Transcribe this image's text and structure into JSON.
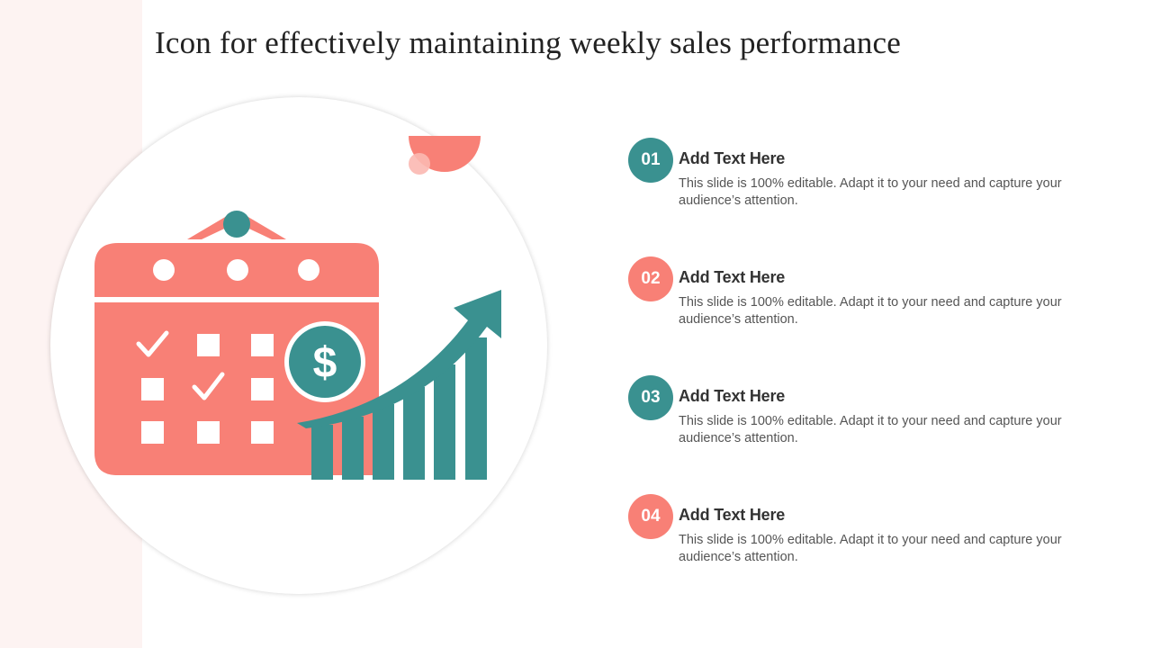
{
  "slide": {
    "title": "Icon for effectively maintaining weekly sales performance"
  },
  "colors": {
    "coral": "#f88076",
    "teal": "#3a9190",
    "band": "#fdf3f2"
  },
  "icons": [
    "calendar-icon",
    "dollar-icon",
    "growth-arrow-icon",
    "bar-chart-icon"
  ],
  "items": [
    {
      "number": "01",
      "heading": "Add Text Here",
      "text": "This slide is 100% editable. Adapt it to your need and capture your audience’s attention.",
      "color": "teal"
    },
    {
      "number": "02",
      "heading": "Add Text Here",
      "text": "This slide is 100% editable. Adapt it to your need and capture your audience’s attention.",
      "color": "coral"
    },
    {
      "number": "03",
      "heading": "Add Text Here",
      "text": "This slide is 100% editable. Adapt it to your need and capture your audience’s attention.",
      "color": "teal"
    },
    {
      "number": "04",
      "heading": "Add Text Here",
      "text": "This slide is 100% editable. Adapt it to your need and capture your audience’s attention.",
      "color": "coral"
    }
  ]
}
